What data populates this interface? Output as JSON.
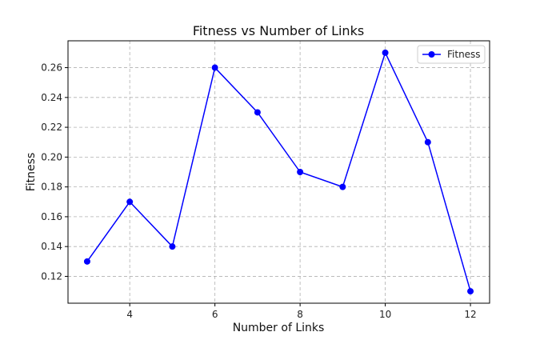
{
  "chart_data": {
    "type": "line",
    "title": "Fitness vs Number of Links",
    "xlabel": "Number of Links",
    "ylabel": "Fitness",
    "x": [
      3,
      4,
      5,
      6,
      7,
      8,
      9,
      10,
      11,
      12
    ],
    "series": [
      {
        "name": "Fitness",
        "color": "#0000ff",
        "values": [
          0.13,
          0.17,
          0.14,
          0.26,
          0.23,
          0.19,
          0.18,
          0.27,
          0.21,
          0.11
        ]
      }
    ],
    "xlim": [
      2.55,
      12.45
    ],
    "ylim": [
      0.102,
      0.278
    ],
    "xticks": [
      4,
      6,
      8,
      10,
      12
    ],
    "yticks": [
      0.12,
      0.14,
      0.16,
      0.18,
      0.2,
      0.22,
      0.24,
      0.26
    ],
    "ytick_labels": [
      "0.12",
      "0.14",
      "0.16",
      "0.18",
      "0.20",
      "0.22",
      "0.24",
      "0.26"
    ],
    "grid": true,
    "legend": "upper right"
  }
}
